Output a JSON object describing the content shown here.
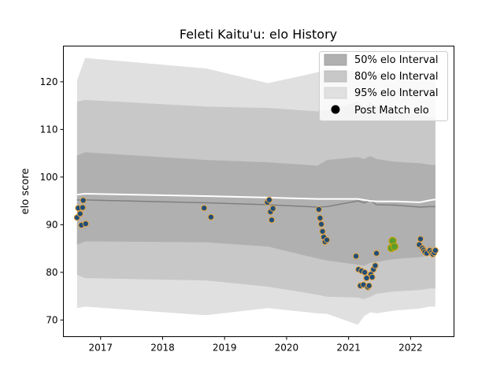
{
  "chart_data": {
    "type": "scatter",
    "title": "Feleti Kaitu'u: elo History",
    "xlabel": "",
    "ylabel": "elo score",
    "xlim": [
      2016.4,
      2022.7
    ],
    "ylim": [
      66.5,
      127.5
    ],
    "x_ticks": [
      2017,
      2018,
      2019,
      2020,
      2021,
      2022
    ],
    "x_tick_labels": [
      "2017",
      "2018",
      "2019",
      "2020",
      "2021",
      "2022"
    ],
    "y_ticks": [
      70,
      80,
      90,
      100,
      110,
      120
    ],
    "y_tick_labels": [
      "70",
      "80",
      "90",
      "100",
      "110",
      "120"
    ],
    "grid": false,
    "legend_position": "top-right",
    "legend": [
      {
        "label": "50% elo Interval",
        "kind": "patch",
        "color": "#b0b0b0"
      },
      {
        "label": "80% elo Interval",
        "kind": "patch",
        "color": "#c8c8c8"
      },
      {
        "label": "95% elo Interval",
        "kind": "patch",
        "color": "#e0e0e0"
      },
      {
        "label": "Post Match elo",
        "kind": "marker",
        "color": "#000000"
      }
    ],
    "band_x": [
      2016.62,
      2016.75,
      2018.7,
      2019.7,
      2020.5,
      2020.65,
      2021.15,
      2021.25,
      2021.35,
      2021.45,
      2021.75,
      2022.15,
      2022.3,
      2022.4
    ],
    "mean": [
      95.2,
      95.2,
      94.6,
      94.2,
      93.7,
      93.8,
      95.0,
      94.6,
      95.1,
      94.2,
      94.1,
      93.7,
      93.8,
      93.8
    ],
    "band_50_low": [
      85.8,
      86.5,
      86.3,
      85.4,
      82.9,
      82.5,
      81.6,
      81.4,
      82.0,
      82.2,
      82.8,
      83.2,
      83.5,
      83.6
    ],
    "band_50_high": [
      104.5,
      105.2,
      103.6,
      103.1,
      102.4,
      103.6,
      104.2,
      103.8,
      104.4,
      103.8,
      103.2,
      102.9,
      102.6,
      102.5
    ],
    "band_80_low": [
      79.5,
      78.8,
      78.3,
      77.0,
      75.3,
      74.9,
      74.7,
      74.4,
      74.9,
      75.5,
      76.0,
      76.3,
      76.6,
      76.6
    ],
    "band_80_high": [
      115.8,
      116.2,
      114.8,
      114.5,
      113.8,
      114.1,
      115.8,
      114.6,
      115.8,
      114.9,
      113.5,
      113.1,
      112.6,
      112.4
    ],
    "band_95_low": [
      72.5,
      72.8,
      71.0,
      72.5,
      71.4,
      71.3,
      69.0,
      70.8,
      71.6,
      71.4,
      72.0,
      72.4,
      72.8,
      72.8
    ],
    "band_95_high": [
      120.3,
      125.0,
      122.8,
      119.7,
      122.0,
      123.0,
      122.1,
      121.6,
      120.9,
      122.0,
      121.5,
      121.0,
      120.5,
      120.5
    ],
    "white_line_y": [
      96.3,
      96.5,
      96.0,
      95.7,
      95.4,
      95.4,
      95.4,
      95.2,
      95.0,
      94.9,
      94.9,
      94.7,
      95.1,
      95.3
    ],
    "points": [
      {
        "x": 2016.62,
        "y": 91.5
      },
      {
        "x": 2016.64,
        "y": 93.5
      },
      {
        "x": 2016.67,
        "y": 92.3
      },
      {
        "x": 2016.69,
        "y": 89.9
      },
      {
        "x": 2016.71,
        "y": 93.6
      },
      {
        "x": 2016.72,
        "y": 95.1
      },
      {
        "x": 2016.76,
        "y": 90.2
      },
      {
        "x": 2018.67,
        "y": 93.5
      },
      {
        "x": 2018.78,
        "y": 91.6
      },
      {
        "x": 2019.69,
        "y": 94.7
      },
      {
        "x": 2019.72,
        "y": 95.2
      },
      {
        "x": 2019.74,
        "y": 92.7
      },
      {
        "x": 2019.76,
        "y": 91.0
      },
      {
        "x": 2019.78,
        "y": 93.4
      },
      {
        "x": 2020.52,
        "y": 93.2
      },
      {
        "x": 2020.54,
        "y": 91.4
      },
      {
        "x": 2020.56,
        "y": 90.1
      },
      {
        "x": 2020.58,
        "y": 88.6
      },
      {
        "x": 2020.6,
        "y": 87.4
      },
      {
        "x": 2020.62,
        "y": 86.4
      },
      {
        "x": 2020.65,
        "y": 86.8
      },
      {
        "x": 2021.12,
        "y": 83.4
      },
      {
        "x": 2021.16,
        "y": 80.6
      },
      {
        "x": 2021.19,
        "y": 77.2
      },
      {
        "x": 2021.21,
        "y": 80.3
      },
      {
        "x": 2021.24,
        "y": 77.4
      },
      {
        "x": 2021.26,
        "y": 80.0
      },
      {
        "x": 2021.29,
        "y": 78.8
      },
      {
        "x": 2021.31,
        "y": 76.9
      },
      {
        "x": 2021.33,
        "y": 77.2
      },
      {
        "x": 2021.36,
        "y": 79.6
      },
      {
        "x": 2021.38,
        "y": 79.0
      },
      {
        "x": 2021.4,
        "y": 80.6
      },
      {
        "x": 2021.43,
        "y": 81.4
      },
      {
        "x": 2021.45,
        "y": 84.0
      },
      {
        "x": 2021.69,
        "y": 85.1,
        "highlight": true
      },
      {
        "x": 2021.71,
        "y": 86.6,
        "highlight": true
      },
      {
        "x": 2021.74,
        "y": 85.4,
        "highlight": true
      },
      {
        "x": 2022.14,
        "y": 85.8
      },
      {
        "x": 2022.16,
        "y": 87.0
      },
      {
        "x": 2022.19,
        "y": 85.1
      },
      {
        "x": 2022.21,
        "y": 84.7
      },
      {
        "x": 2022.23,
        "y": 84.3
      },
      {
        "x": 2022.26,
        "y": 84.0
      },
      {
        "x": 2022.31,
        "y": 84.6
      },
      {
        "x": 2022.34,
        "y": 84.2
      },
      {
        "x": 2022.36,
        "y": 83.8
      },
      {
        "x": 2022.38,
        "y": 84.1
      },
      {
        "x": 2022.4,
        "y": 84.6
      }
    ],
    "colors": {
      "band_50": "#b0b0b0",
      "band_80": "#c8c8c8",
      "band_95": "#e0e0e0",
      "mean_line": "#808080",
      "white_line": "#ffffff",
      "point_fill": "#1f4e79",
      "point_edge": "#e8a33c",
      "highlight_fill": "#5a9e2f",
      "highlight_edge": "#c8a000"
    }
  }
}
